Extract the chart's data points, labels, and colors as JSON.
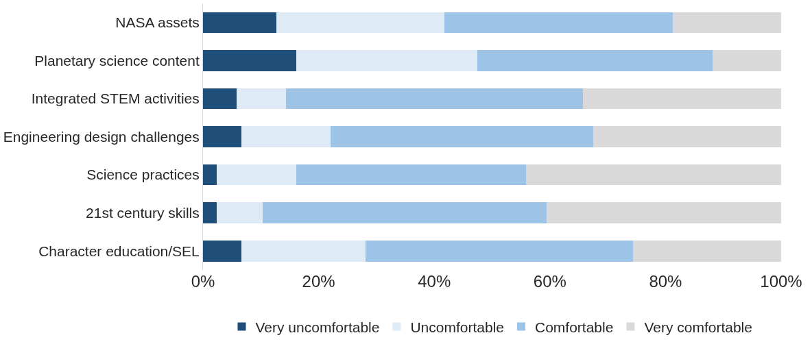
{
  "chart_data": {
    "type": "bar",
    "orientation": "horizontal",
    "stacked": true,
    "categories": [
      "NASA assets",
      "Planetary science content",
      "Integrated STEM activities",
      "Engineering design challenges",
      "Science practices",
      "21st century skills",
      "Character education/SEL"
    ],
    "series": [
      {
        "name": "Very uncomfortable",
        "color": "#1f4e79",
        "values": [
          12.7,
          16.1,
          5.8,
          6.7,
          2.4,
          2.4,
          6.7
        ]
      },
      {
        "name": "Uncomfortable",
        "color": "#deebf7",
        "values": [
          29.1,
          31.3,
          8.6,
          15.4,
          13.7,
          7.9,
          21.4
        ]
      },
      {
        "name": "Comfortable",
        "color": "#9dc3e6",
        "values": [
          39.4,
          40.7,
          51.3,
          45.4,
          39.8,
          49.1,
          46.3
        ]
      },
      {
        "name": "Very comfortable",
        "color": "#d9d9d9",
        "values": [
          18.8,
          11.9,
          34.3,
          32.5,
          44.1,
          40.6,
          25.6
        ]
      }
    ],
    "xlim": [
      0,
      100
    ],
    "xticks": [
      {
        "value": 0,
        "label": "0%"
      },
      {
        "value": 20,
        "label": "20%"
      },
      {
        "value": 40,
        "label": "40%"
      },
      {
        "value": 60,
        "label": "60%"
      },
      {
        "value": 80,
        "label": "80%"
      },
      {
        "value": 100,
        "label": "100%"
      }
    ],
    "legend": "bottom"
  }
}
